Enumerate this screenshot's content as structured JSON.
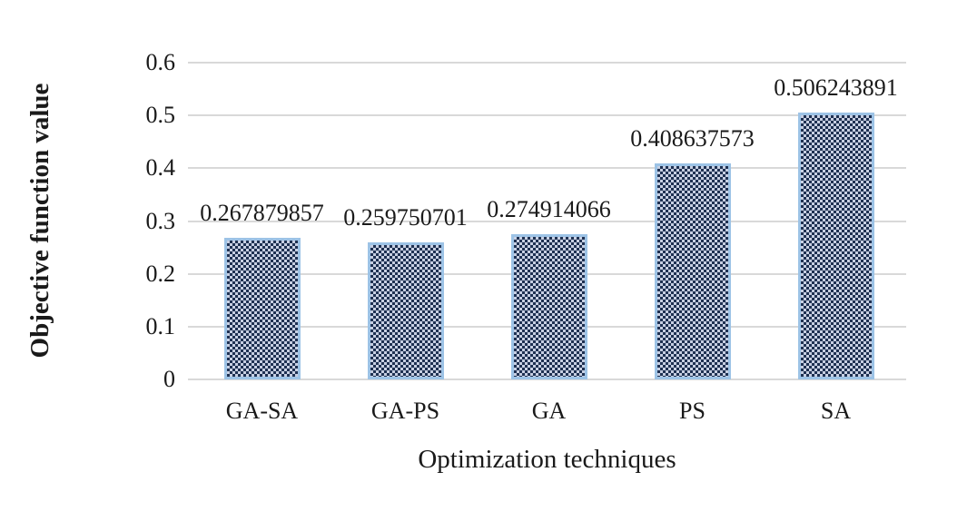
{
  "figure": {
    "background": "#ffffff"
  },
  "chart_data": {
    "type": "bar",
    "title": "",
    "xlabel": "Optimization techniques",
    "ylabel": "Objective function value",
    "categories": [
      "GA-SA",
      "GA-PS",
      "GA",
      "PS",
      "SA"
    ],
    "values": [
      0.267879857,
      0.259750701,
      0.274914066,
      0.408637573,
      0.506243891
    ],
    "value_labels": [
      "0.267879857",
      "0.259750701",
      "0.274914066",
      "0.408637573",
      "0.506243891"
    ],
    "ylim": [
      0,
      0.6
    ],
    "yticks": [
      0,
      0.1,
      0.2,
      0.3,
      0.4,
      0.5,
      0.6
    ],
    "ytick_labels": [
      "0",
      "0.1",
      "0.2",
      "0.3",
      "0.4",
      "0.5",
      "0.6"
    ],
    "grid": "horizontal",
    "legend": "none",
    "bar_pattern": "small-checkerboard",
    "colors": {
      "pattern_dark": "#1f3152",
      "pattern_light": "#c7cfe2",
      "bar_border": "#9dc3e6",
      "gridline": "#d9d9d9",
      "text": "#1a1a1a",
      "background": "#ffffff"
    }
  }
}
